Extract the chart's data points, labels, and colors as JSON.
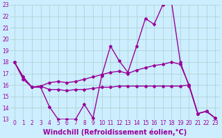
{
  "x": [
    0,
    1,
    2,
    3,
    4,
    5,
    6,
    7,
    8,
    9,
    10,
    11,
    12,
    13,
    14,
    15,
    16,
    17,
    18,
    19,
    20,
    21,
    22,
    23
  ],
  "line1": [
    18.0,
    16.7,
    15.8,
    15.9,
    16.2,
    16.3,
    16.2,
    16.3,
    16.5,
    16.7,
    16.9,
    17.1,
    17.2,
    17.0,
    17.3,
    17.5,
    17.7,
    17.8,
    18.0,
    17.8,
    16.0,
    13.5,
    13.7,
    13.1
  ],
  "line2": [
    18.0,
    16.7,
    15.8,
    15.9,
    15.6,
    15.6,
    15.5,
    15.6,
    15.6,
    15.7,
    15.8,
    15.8,
    15.9,
    15.9,
    15.9,
    15.9,
    15.9,
    15.9,
    15.9,
    15.9,
    16.0,
    13.5,
    13.7,
    13.1
  ],
  "line3": [
    18.0,
    16.5,
    15.8,
    15.8,
    14.1,
    13.0,
    13.0,
    13.0,
    14.3,
    13.1,
    16.8,
    19.4,
    18.1,
    17.1,
    19.4,
    21.8,
    21.3,
    23.0,
    23.2,
    18.0,
    15.9,
    13.5,
    13.7,
    13.1
  ],
  "ylim": [
    13,
    23
  ],
  "xlim": [
    -0.5,
    23.5
  ],
  "yticks": [
    13,
    14,
    15,
    16,
    17,
    18,
    19,
    20,
    21,
    22,
    23
  ],
  "xticks": [
    0,
    1,
    2,
    3,
    4,
    5,
    6,
    7,
    8,
    9,
    10,
    11,
    12,
    13,
    14,
    15,
    16,
    17,
    18,
    19,
    20,
    21,
    22,
    23
  ],
  "xlabel": "Windchill (Refroidissement éolien,°C)",
  "line_color": "#990099",
  "bg_color": "#cceeff",
  "grid_color": "#aacccc",
  "marker": "D",
  "markersize": 2.0,
  "linewidth": 1.0,
  "tick_fontsize": 5.5,
  "xlabel_fontsize": 7.0
}
